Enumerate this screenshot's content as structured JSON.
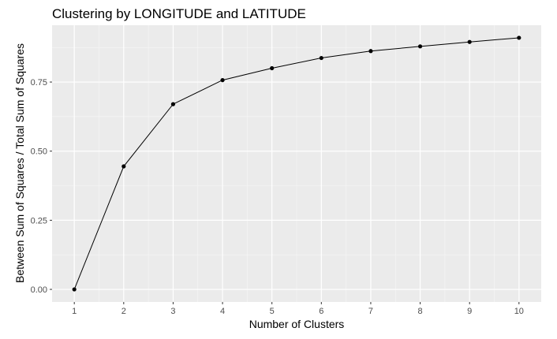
{
  "chart_data": {
    "type": "line",
    "title": "Clustering by LONGITUDE and LATITUDE",
    "xlabel": "Number of Clusters",
    "ylabel": "Between Sum of Squares / Total Sum of Squares",
    "x": [
      1,
      2,
      3,
      4,
      5,
      6,
      7,
      8,
      9,
      10
    ],
    "series": [
      {
        "values": [
          0.0,
          0.445,
          0.67,
          0.757,
          0.8,
          0.837,
          0.862,
          0.879,
          0.895,
          0.91
        ]
      }
    ],
    "x_ticks": [
      "1",
      "2",
      "3",
      "4",
      "5",
      "6",
      "7",
      "8",
      "9",
      "10"
    ],
    "y_ticks": [
      "0.00",
      "0.25",
      "0.50",
      "0.75"
    ],
    "y_tick_values": [
      0.0,
      0.25,
      0.5,
      0.75
    ],
    "xlim": [
      0.55,
      10.45
    ],
    "ylim": [
      -0.0455,
      0.9555
    ],
    "grid": true,
    "markers": true,
    "panel_background": "#ebebeb",
    "grid_major_color": "#ffffff",
    "grid_minor_color": "#f5f5f5",
    "line_color": "#000000",
    "point_color": "#000000"
  }
}
